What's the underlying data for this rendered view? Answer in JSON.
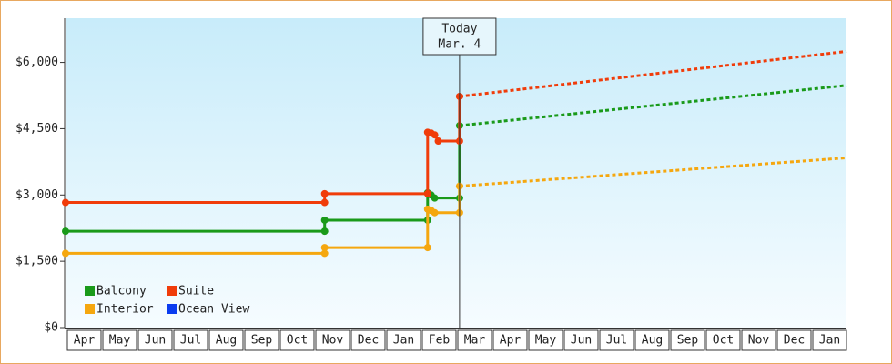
{
  "chart_data": {
    "type": "line",
    "categories": [
      "Apr",
      "May",
      "Jun",
      "Jul",
      "Aug",
      "Sep",
      "Oct",
      "Nov",
      "Dec",
      "Jan",
      "Feb",
      "Mar",
      "Apr",
      "May",
      "Jun",
      "Jul",
      "Aug",
      "Sep",
      "Oct",
      "Nov",
      "Dec",
      "Jan"
    ],
    "xlim": [
      0,
      22
    ],
    "ylim": [
      0,
      7000
    ],
    "yticks": [
      {
        "value": 0,
        "label": "$0"
      },
      {
        "value": 1500,
        "label": "$1,500"
      },
      {
        "value": 3000,
        "label": "$3,000"
      },
      {
        "value": 4500,
        "label": "$4,500"
      },
      {
        "value": 6000,
        "label": "$6,000"
      }
    ],
    "annotation": {
      "lines": [
        "Today",
        "Mar. 4"
      ],
      "x": 11.1
    },
    "series": [
      {
        "name": "Balcony",
        "color": "#1a9a1a",
        "x": [
          0,
          7.3,
          7.3,
          10.2,
          10.2,
          10.3,
          10.4,
          11.1,
          11.1
        ],
        "values": [
          2180,
          2180,
          2430,
          2430,
          3050,
          3000,
          2930,
          2930,
          4570
        ],
        "projected": {
          "x": [
            11.1,
            22
          ],
          "values": [
            4570,
            5480
          ]
        }
      },
      {
        "name": "Suite",
        "color": "#f03c0a",
        "x": [
          0,
          7.3,
          7.3,
          10.2,
          10.2,
          10.3,
          10.4,
          10.5,
          11.1,
          11.1
        ],
        "values": [
          2830,
          2830,
          3030,
          3030,
          4420,
          4400,
          4360,
          4220,
          4220,
          5230
        ],
        "projected": {
          "x": [
            11.1,
            22
          ],
          "values": [
            5230,
            6250
          ]
        }
      },
      {
        "name": "Interior",
        "color": "#f5a70f",
        "x": [
          0,
          7.3,
          7.3,
          10.2,
          10.2,
          10.3,
          10.4,
          11.1,
          11.1
        ],
        "values": [
          1680,
          1680,
          1810,
          1810,
          2680,
          2650,
          2600,
          2600,
          3200
        ],
        "projected": {
          "x": [
            11.1,
            22
          ],
          "values": [
            3200,
            3840
          ]
        }
      },
      {
        "name": "Ocean View",
        "color": "#0a3cf0",
        "x": [],
        "values": []
      }
    ]
  }
}
